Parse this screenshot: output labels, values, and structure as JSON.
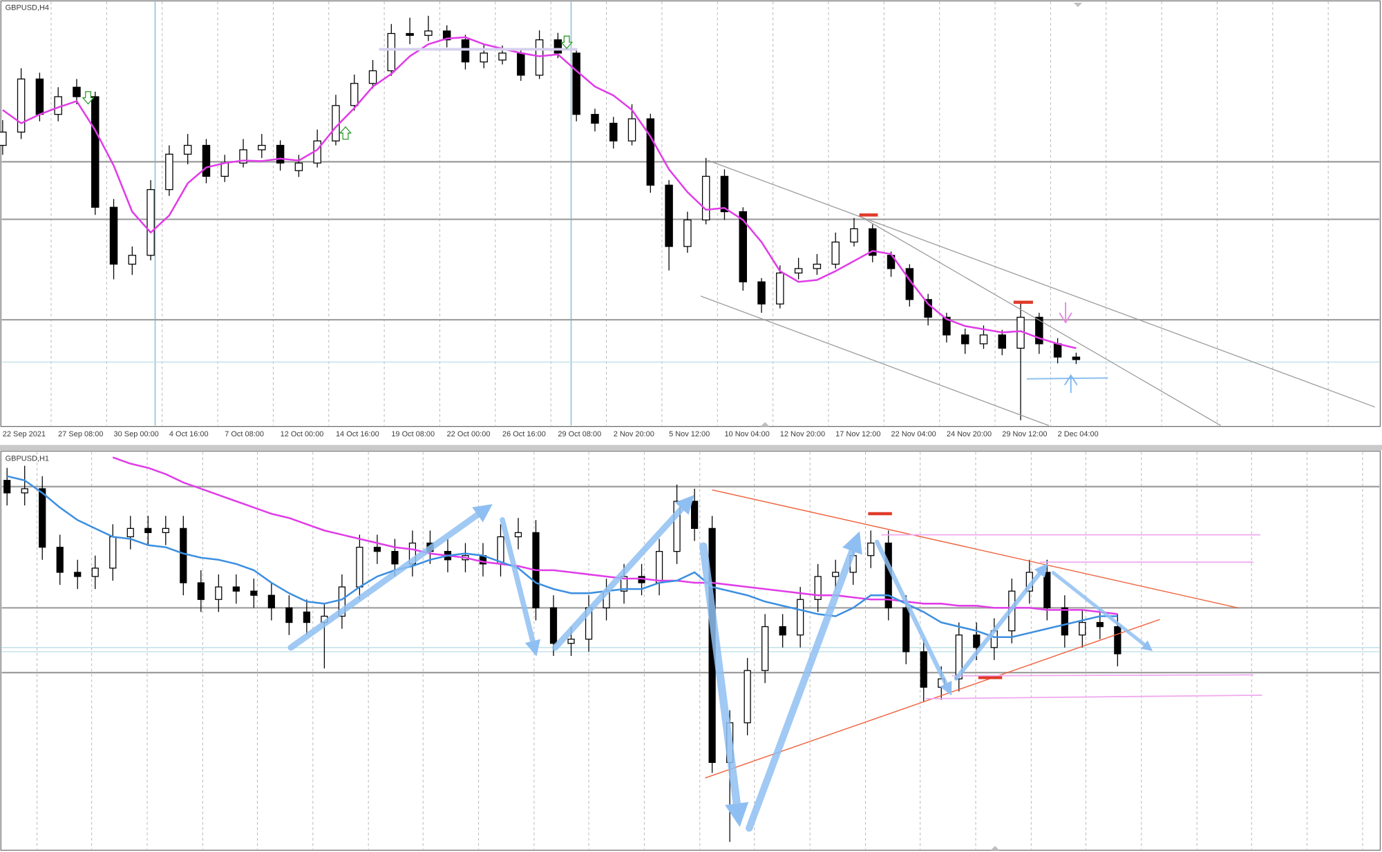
{
  "chart_data": [
    {
      "type": "candlestick",
      "title": "GBPUSD,H4",
      "categories": [
        "22 Sep 2021",
        null,
        null,
        "27 Sep 08:00",
        null,
        null,
        "30 Sep 00:00",
        null,
        null,
        "4 Oct 16:00",
        null,
        null,
        "7 Oct 08:00",
        null,
        null,
        "12 Oct 00:00",
        null,
        null,
        "14 Oct 16:00",
        null,
        null,
        "19 Oct 08:00",
        null,
        null,
        "22 Oct 00:00",
        null,
        null,
        "26 Oct 16:00",
        null,
        null,
        "29 Oct 08:00",
        null,
        null,
        "2 Nov 20:00",
        null,
        null,
        "5 Nov 12:00",
        null,
        null,
        "10 Nov 04:00",
        null,
        null,
        "12 Nov 20:00",
        null,
        null,
        "17 Nov 12:00",
        null,
        null,
        "22 Nov 04:00",
        null,
        null,
        "24 Nov 20:00",
        null,
        null,
        "29 Nov 12:00",
        null,
        null,
        "2 Dec 04:00",
        null
      ],
      "open": [
        1.363,
        1.3651,
        1.3735,
        1.3679,
        1.3722,
        1.3707,
        1.3532,
        1.3442,
        1.3456,
        1.356,
        1.3616,
        1.363,
        1.3581,
        1.3602,
        1.3623,
        1.363,
        1.359,
        1.3602,
        1.3637,
        1.3693,
        1.3728,
        1.3748,
        1.3807,
        1.3804,
        1.3811,
        1.3797,
        1.3762,
        1.3765,
        1.3776,
        1.3741,
        1.3797,
        1.3776,
        1.3679,
        1.3665,
        1.3637,
        1.3672,
        1.3567,
        1.347,
        1.3512,
        1.3581,
        1.3525,
        1.3414,
        1.3379,
        1.3428,
        1.3435,
        1.3442,
        1.3477,
        1.3498,
        1.3456,
        1.3435,
        1.3386,
        1.3358,
        1.333,
        1.3316,
        1.333,
        1.3309,
        1.3358,
        1.3316,
        1.3295
      ],
      "high": [
        1.367,
        1.3752,
        1.3745,
        1.3722,
        1.3735,
        1.3715,
        1.3545,
        1.347,
        1.3575,
        1.363,
        1.3648,
        1.364,
        1.3615,
        1.364,
        1.3648,
        1.3638,
        1.3615,
        1.3655,
        1.371,
        1.3742,
        1.3765,
        1.3822,
        1.3832,
        1.3835,
        1.382,
        1.3805,
        1.379,
        1.3788,
        1.3782,
        1.3812,
        1.3808,
        1.378,
        1.3688,
        1.3675,
        1.3695,
        1.368,
        1.3575,
        1.3525,
        1.361,
        1.3592,
        1.3532,
        1.342,
        1.344,
        1.3452,
        1.3458,
        1.3492,
        1.3515,
        1.3505,
        1.3462,
        1.3442,
        1.3395,
        1.3365,
        1.334,
        1.3345,
        1.3338,
        1.3382,
        1.3365,
        1.3325,
        1.3302
      ],
      "low": [
        1.3615,
        1.364,
        1.3668,
        1.3668,
        1.3695,
        1.352,
        1.3418,
        1.3425,
        1.3448,
        1.355,
        1.36,
        1.357,
        1.3572,
        1.3595,
        1.361,
        1.359,
        1.358,
        1.3595,
        1.363,
        1.3685,
        1.372,
        1.374,
        1.379,
        1.3795,
        1.3785,
        1.375,
        1.3752,
        1.3758,
        1.3732,
        1.3735,
        1.3768,
        1.3668,
        1.3652,
        1.3625,
        1.363,
        1.3555,
        1.3432,
        1.346,
        1.3505,
        1.3512,
        1.34,
        1.3365,
        1.3372,
        1.3418,
        1.3425,
        1.3435,
        1.347,
        1.3445,
        1.3422,
        1.3375,
        1.3345,
        1.3318,
        1.33,
        1.3308,
        1.3298,
        1.3195,
        1.33,
        1.3285,
        1.3284
      ],
      "close": [
        1.3651,
        1.3735,
        1.3679,
        1.3707,
        1.3707,
        1.3532,
        1.3442,
        1.3456,
        1.356,
        1.3616,
        1.363,
        1.3581,
        1.3602,
        1.3623,
        1.363,
        1.3602,
        1.3602,
        1.3637,
        1.3693,
        1.3728,
        1.3748,
        1.3807,
        1.3804,
        1.3811,
        1.3797,
        1.3762,
        1.3776,
        1.3776,
        1.3741,
        1.3797,
        1.3776,
        1.3679,
        1.3665,
        1.3637,
        1.3672,
        1.3567,
        1.347,
        1.3512,
        1.3581,
        1.3525,
        1.3414,
        1.3379,
        1.3428,
        1.3435,
        1.3442,
        1.3477,
        1.3498,
        1.3456,
        1.3435,
        1.3386,
        1.3358,
        1.333,
        1.3316,
        1.333,
        1.3309,
        1.3358,
        1.3316,
        1.3295,
        1.3291
      ],
      "up_color": "#ffffff",
      "down_color": "#000000",
      "lines": [
        {
          "color": "#e03ce8",
          "values": [
            1.3686,
            1.3665,
            1.3679,
            1.369,
            1.37,
            1.3654,
            1.3598,
            1.3525,
            1.3492,
            1.3519,
            1.357,
            1.3595,
            1.3602,
            1.3606,
            1.3605,
            1.3609,
            1.3606,
            1.3623,
            1.3659,
            1.3689,
            1.3723,
            1.3743,
            1.3771,
            1.379,
            1.3799,
            1.3801,
            1.379,
            1.3783,
            1.3776,
            1.3771,
            1.3774,
            1.3748,
            1.3723,
            1.3709,
            1.3686,
            1.3644,
            1.3592,
            1.3556,
            1.3528,
            1.3531,
            1.3512,
            1.3477,
            1.3431,
            1.3414,
            1.3417,
            1.3431,
            1.3447,
            1.3463,
            1.3458,
            1.3417,
            1.3379,
            1.3355,
            1.3344,
            1.3339,
            1.3334,
            1.3336,
            1.3325,
            1.3316,
            1.3309
          ]
        }
      ],
      "levels": [
        {
          "value": 1.3604,
          "color": "#a0a0a0"
        },
        {
          "value": 1.3513,
          "color": "#a0a0a0"
        },
        {
          "value": 1.3354,
          "color": "#a0a0a0"
        },
        {
          "value": 1.3287,
          "color": "#bfe0ea"
        }
      ],
      "ylim": [
        1.3188,
        1.386
      ]
    },
    {
      "type": "candlestick",
      "title": "GBPUSD,H1",
      "open": [
        1.3368,
        1.3362,
        1.3364,
        1.3336,
        1.3324,
        1.3322,
        1.3326,
        1.3341,
        1.3345,
        1.3343,
        1.3345,
        1.3319,
        1.3311,
        1.3317,
        1.3315,
        1.3313,
        1.3307,
        1.3305,
        1.33,
        1.3303,
        1.3317,
        1.3336,
        1.3334,
        1.3328,
        1.3338,
        1.3334,
        1.333,
        1.3332,
        1.3328,
        1.3341,
        1.3343,
        1.3307,
        1.329,
        1.3292,
        1.3307,
        1.3315,
        1.3322,
        1.3319,
        1.3334,
        1.3358,
        1.3345,
        1.3233,
        1.3252,
        1.3277,
        1.3298,
        1.3294,
        1.3311,
        1.3322,
        1.3324,
        1.3332,
        1.3338,
        1.3307,
        1.3286,
        1.3269,
        1.3273,
        1.3294,
        1.3288,
        1.3296,
        1.3315,
        1.3324,
        1.3307,
        1.3294,
        1.33,
        1.3298
      ],
      "high": [
        1.3374,
        1.3375,
        1.337,
        1.3342,
        1.333,
        1.3332,
        1.3347,
        1.3351,
        1.3351,
        1.3351,
        1.3351,
        1.3325,
        1.3323,
        1.3323,
        1.3321,
        1.3319,
        1.3313,
        1.3311,
        1.3309,
        1.3323,
        1.3342,
        1.3342,
        1.334,
        1.3344,
        1.3344,
        1.334,
        1.3338,
        1.3338,
        1.3347,
        1.335,
        1.3349,
        1.3313,
        1.3298,
        1.3313,
        1.3321,
        1.3328,
        1.3328,
        1.334,
        1.3366,
        1.3364,
        1.3351,
        1.3258,
        1.3283,
        1.3304,
        1.3304,
        1.3317,
        1.3328,
        1.333,
        1.3338,
        1.3344,
        1.3344,
        1.3313,
        1.3292,
        1.3279,
        1.33,
        1.33,
        1.3302,
        1.3321,
        1.333,
        1.333,
        1.3313,
        1.3306,
        1.3306,
        1.3304
      ],
      "low": [
        1.3356,
        1.3356,
        1.333,
        1.3318,
        1.3316,
        1.3316,
        1.332,
        1.3335,
        1.3337,
        1.3337,
        1.3313,
        1.3305,
        1.3305,
        1.3309,
        1.3307,
        1.3301,
        1.3294,
        1.3294,
        1.3278,
        1.3297,
        1.3311,
        1.3328,
        1.3322,
        1.3322,
        1.3328,
        1.3324,
        1.3324,
        1.3322,
        1.3322,
        1.3335,
        1.3301,
        1.3284,
        1.3284,
        1.3286,
        1.3301,
        1.3309,
        1.3313,
        1.3313,
        1.3328,
        1.3339,
        1.3228,
        1.3195,
        1.3246,
        1.3271,
        1.3288,
        1.3288,
        1.3305,
        1.3316,
        1.3318,
        1.3326,
        1.3301,
        1.328,
        1.3262,
        1.3263,
        1.3267,
        1.3282,
        1.3282,
        1.329,
        1.3309,
        1.3301,
        1.3288,
        1.3288,
        1.3292,
        1.3279
      ],
      "close": [
        1.3362,
        1.3364,
        1.3336,
        1.3324,
        1.3322,
        1.3326,
        1.3341,
        1.3345,
        1.3343,
        1.3345,
        1.3319,
        1.3311,
        1.3317,
        1.3315,
        1.3313,
        1.3307,
        1.33,
        1.33,
        1.3303,
        1.3317,
        1.3336,
        1.3334,
        1.3328,
        1.3338,
        1.3334,
        1.333,
        1.3332,
        1.3328,
        1.3341,
        1.3343,
        1.3307,
        1.329,
        1.3292,
        1.3307,
        1.3315,
        1.3322,
        1.3319,
        1.3334,
        1.3358,
        1.3345,
        1.3233,
        1.3252,
        1.3277,
        1.3298,
        1.3294,
        1.3311,
        1.3322,
        1.3324,
        1.3332,
        1.3338,
        1.3307,
        1.3286,
        1.3269,
        1.3273,
        1.3294,
        1.3288,
        1.3296,
        1.3315,
        1.3324,
        1.3307,
        1.3294,
        1.33,
        1.3298,
        1.3285
      ],
      "up_color": "#ffffff",
      "down_color": "#000000",
      "lines": [
        {
          "color": "#e03ce8",
          "values": [
            null,
            null,
            null,
            null,
            null,
            null,
            1.3379,
            1.3376,
            1.3374,
            1.3371,
            1.3367,
            1.3364,
            1.3361,
            1.3358,
            1.3355,
            1.3352,
            1.335,
            1.3347,
            1.3344,
            1.3342,
            1.334,
            1.3338,
            1.3336,
            1.3335,
            1.3333,
            1.3332,
            1.3331,
            1.3329,
            1.3328,
            1.3327,
            1.3325,
            1.3325,
            1.3324,
            1.3323,
            1.3322,
            1.3321,
            1.3321,
            1.332,
            1.332,
            1.3319,
            1.3319,
            1.3318,
            1.3317,
            1.3316,
            1.3315,
            1.3314,
            1.3313,
            1.3313,
            1.3312,
            1.3311,
            1.3311,
            1.331,
            1.3309,
            1.3309,
            1.3308,
            1.3308,
            1.3307,
            1.3307,
            1.3307,
            1.3306,
            1.3306,
            1.3306,
            1.3305,
            1.3304
          ]
        },
        {
          "color": "#3d8fe0",
          "values": [
            1.337,
            1.3368,
            1.3362,
            1.3355,
            1.3349,
            1.3345,
            1.3341,
            1.334,
            1.3337,
            1.3336,
            1.3333,
            1.3331,
            1.333,
            1.3328,
            1.3325,
            1.3319,
            1.3314,
            1.331,
            1.3309,
            1.3311,
            1.3317,
            1.3322,
            1.3325,
            1.3327,
            1.333,
            1.3332,
            1.3333,
            1.3332,
            1.3329,
            1.3326,
            1.3319,
            1.3316,
            1.3314,
            1.3314,
            1.3315,
            1.3316,
            1.3316,
            1.3319,
            1.332,
            1.3324,
            1.3317,
            1.3315,
            1.3313,
            1.331,
            1.3308,
            1.3306,
            1.3304,
            1.3303,
            1.3307,
            1.3313,
            1.3313,
            1.3309,
            1.3305,
            1.33,
            1.3298,
            1.3296,
            1.3293,
            1.3293,
            1.3295,
            1.3297,
            1.3299,
            1.3301,
            1.3303,
            1.3303
          ]
        }
      ],
      "levels": [
        {
          "value": 1.3365,
          "color": "#a0a0a0"
        },
        {
          "value": 1.3307,
          "color": "#a0a0a0"
        },
        {
          "value": 1.3276,
          "color": "#a0a0a0"
        },
        {
          "value": 1.3288,
          "color": "#bfe0ea"
        },
        {
          "value": 1.3286,
          "color": "#bfe0ea"
        }
      ],
      "ylim": [
        1.3191,
        1.3382
      ]
    }
  ]
}
